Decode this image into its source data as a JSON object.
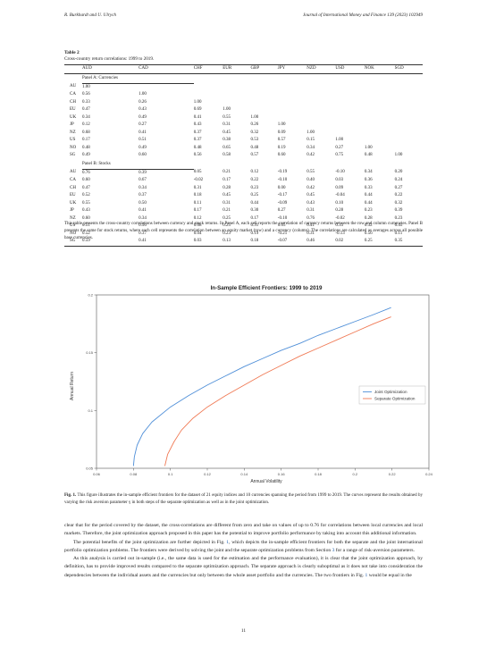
{
  "header": {
    "left": "R. Burkhardt and U. Ulrych",
    "right": "Journal of International Money and Finance 139 (2023) 102949"
  },
  "table": {
    "title": "Table 2",
    "caption": "Cross-country return correlations: 1999 to 2019.",
    "columns": [
      "AUD",
      "CAD",
      "CHF",
      "EUR",
      "GBP",
      "JPY",
      "NZD",
      "USD",
      "NOK",
      "SGD"
    ],
    "panel_a_label": "Panel A: Currencies",
    "panel_a": [
      {
        "label": "AU",
        "values": [
          "1.00",
          "",
          "",
          "",
          "",
          "",
          "",
          "",
          "",
          ""
        ]
      },
      {
        "label": "CA",
        "values": [
          "0.56",
          "1.00",
          "",
          "",
          "",
          "",
          "",
          "",
          "",
          ""
        ]
      },
      {
        "label": "CH",
        "values": [
          "0.33",
          "0.26",
          "1.00",
          "",
          "",
          "",
          "",
          "",
          "",
          ""
        ]
      },
      {
        "label": "EU",
        "values": [
          "0.47",
          "0.43",
          "0.69",
          "1.00",
          "",
          "",
          "",
          "",
          "",
          ""
        ]
      },
      {
        "label": "UK",
        "values": [
          "0.34",
          "0.49",
          "0.41",
          "0.55",
          "1.00",
          "",
          "",
          "",
          "",
          ""
        ]
      },
      {
        "label": "JP",
        "values": [
          "0.12",
          "0.27",
          "0.43",
          "0.31",
          "0.26",
          "1.00",
          "",
          "",
          "",
          ""
        ]
      },
      {
        "label": "NZ",
        "values": [
          "0.68",
          "0.41",
          "0.37",
          "0.45",
          "0.32",
          "0.09",
          "1.00",
          "",
          "",
          ""
        ]
      },
      {
        "label": "US",
        "values": [
          "0.17",
          "0.51",
          "0.37",
          "0.38",
          "0.53",
          "0.57",
          "0.15",
          "1.00",
          "",
          ""
        ]
      },
      {
        "label": "NO",
        "values": [
          "0.48",
          "0.49",
          "0.48",
          "0.65",
          "0.48",
          "0.19",
          "0.34",
          "0.27",
          "1.00",
          ""
        ]
      },
      {
        "label": "SG",
        "values": [
          "0.49",
          "0.60",
          "0.56",
          "0.58",
          "0.57",
          "0.60",
          "0.42",
          "0.75",
          "0.48",
          "1.00"
        ]
      }
    ],
    "panel_b_label": "Panel B: Stocks",
    "panel_b": [
      {
        "label": "AU",
        "values": [
          "0.76",
          "0.39",
          "0.05",
          "0.21",
          "0.12",
          "-0.19",
          "0.55",
          "-0.10",
          "0.34",
          "0.20"
        ]
      },
      {
        "label": "CA",
        "values": [
          "0.60",
          "0.67",
          "-0.02",
          "0.17",
          "0.22",
          "-0.10",
          "0.40",
          "0.03",
          "0.36",
          "0.24"
        ]
      },
      {
        "label": "CH",
        "values": [
          "0.47",
          "0.34",
          "0.31",
          "0.28",
          "0.23",
          "0.00",
          "0.42",
          "0.09",
          "0.33",
          "0.27"
        ]
      },
      {
        "label": "EU",
        "values": [
          "0.52",
          "0.37",
          "0.18",
          "0.45",
          "0.25",
          "-0.17",
          "0.45",
          "-0.04",
          "0.44",
          "0.22"
        ]
      },
      {
        "label": "UK",
        "values": [
          "0.55",
          "0.50",
          "0.11",
          "0.31",
          "0.44",
          "-0.09",
          "0.43",
          "0.10",
          "0.44",
          "0.32"
        ]
      },
      {
        "label": "JP",
        "values": [
          "0.43",
          "0.41",
          "0.17",
          "0.21",
          "0.30",
          "0.27",
          "0.31",
          "0.28",
          "0.23",
          "0.39"
        ]
      },
      {
        "label": "NZ",
        "values": [
          "0.60",
          "0.34",
          "0.12",
          "0.25",
          "0.17",
          "-0.10",
          "0.76",
          "-0.02",
          "0.28",
          "0.23"
        ]
      },
      {
        "label": "US",
        "values": [
          "0.51",
          "0.56",
          "0.08",
          "0.25",
          "0.31",
          "0.05",
          "0.41",
          "0.33",
          "0.32",
          "0.45"
        ]
      },
      {
        "label": "NO",
        "values": [
          "0.52",
          "0.37",
          "0.04",
          "0.23",
          "0.19",
          "-0.21",
          "0.31",
          "-0.13",
          "0.56",
          "0.11"
        ]
      },
      {
        "label": "SG",
        "values": [
          "0.59",
          "0.41",
          "0.03",
          "0.13",
          "0.18",
          "-0.07",
          "0.46",
          "0.02",
          "0.25",
          "0.35"
        ]
      }
    ],
    "note": "This table presents the cross-country correlations between currency and stock returns. In Panel A, each cell reports the correlation of currency returns between the row and column currencies. Panel B presents the same for stock returns, where each cell represents the correlation between an equity market (row) and a currency (column). The correlations are calculated as averages across all possible base currencies."
  },
  "chart_data": {
    "type": "line",
    "title": "In-Sample Efficient Frontiers: 1999 to 2019",
    "xlabel": "Annual Volatility",
    "ylabel": "Annual Return",
    "xlim": [
      0.06,
      0.24
    ],
    "ylim": [
      0.05,
      0.2
    ],
    "xticks": [
      "0.06",
      "0.08",
      "0.1",
      "0.12",
      "0.14",
      "0.16",
      "0.18",
      "0.2",
      "0.22",
      "0.24"
    ],
    "yticks": [
      "0.05",
      "0.1",
      "0.15",
      "0.2"
    ],
    "grid": false,
    "legend_position": "right",
    "series": [
      {
        "name": "Joint Optimization",
        "color": "#4f8fd8",
        "x": [
          0.08,
          0.0805,
          0.082,
          0.085,
          0.09,
          0.1,
          0.11,
          0.12,
          0.13,
          0.14,
          0.15,
          0.16,
          0.17,
          0.18,
          0.19,
          0.2,
          0.21,
          0.2195
        ],
        "y": [
          0.052,
          0.06,
          0.07,
          0.08,
          0.09,
          0.103,
          0.113,
          0.122,
          0.13,
          0.138,
          0.145,
          0.152,
          0.158,
          0.165,
          0.171,
          0.177,
          0.183,
          0.189
        ]
      },
      {
        "name": "Separate Optimization",
        "color": "#f07a55",
        "x": [
          0.097,
          0.0985,
          0.102,
          0.106,
          0.112,
          0.12,
          0.13,
          0.14,
          0.15,
          0.16,
          0.17,
          0.18,
          0.19,
          0.2,
          0.21,
          0.2195
        ],
        "y": [
          0.052,
          0.062,
          0.073,
          0.083,
          0.093,
          0.103,
          0.113,
          0.122,
          0.131,
          0.139,
          0.147,
          0.154,
          0.161,
          0.168,
          0.175,
          0.181
        ]
      }
    ]
  },
  "figure": {
    "label": "Fig. 1.",
    "caption": "This figure illustrates the in-sample efficient frontiers for the dataset of 21 equity indices and 10 currencies spanning the period from 1999 to 2019. The curves represent the results obtained by varying the risk aversion parameter γ in both steps of the separate optimization as well as in the joint optimization."
  },
  "body": {
    "p1": "clear that for the period covered by the dataset, the cross-correlations are different from zero and take on values of up to 0.76 for correlations between local currencies and local markets. Therefore, the joint optimization approach proposed in this paper has the potential to improve portfolio performance by taking into account this additional information.",
    "p2_a": "The potential benefits of the joint optimization are further depicted in Fig. ",
    "p2_ref1": "1",
    "p2_b": ", which depicts the in-sample efficient frontiers for both the separate and the joint international portfolio optimization problems. The frontiers were derived by solving the joint and the separate optimization problems from Section ",
    "p2_ref2": "3",
    "p2_c": " for a range of risk-aversion parameters.",
    "p3_a": "As this analysis is carried out in-sample (i.e., the same data is used for the estimation and the performance evaluation), it is clear that the joint optimization approach, by definition, has to provide improved results compared to the separate optimization approach. The separate approach is clearly suboptimal as it does not take into consideration the dependencies between the individual assets and the currencies but only between the whole asset portfolio and the currencies. The two frontiers in Fig. ",
    "p3_ref": "1",
    "p3_b": " would be equal in the"
  },
  "page_number": "11"
}
